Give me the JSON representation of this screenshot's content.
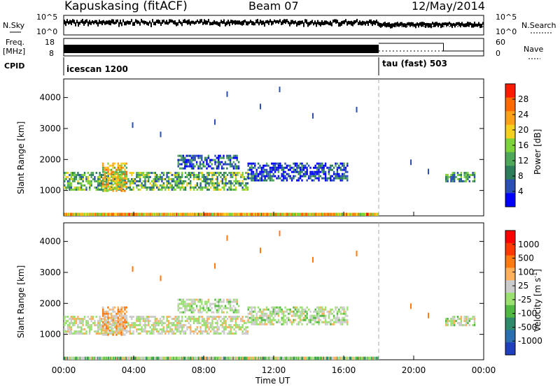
{
  "header": {
    "station": "Kapuskasing (fitACF)",
    "beam": "Beam 07",
    "date": "12/May/2014"
  },
  "panels": {
    "nsky_label": "N.Sky",
    "nsky_ticks": [
      "10^5",
      "10^0"
    ],
    "nsearch_label": "N.Search",
    "nsearch_ticks": [
      "10^5",
      "10^0"
    ],
    "freq_label": "Freq.",
    "freq_unit": "[MHz]",
    "freq_ticks": [
      "18",
      "8"
    ],
    "nave_label": "Nave",
    "nave_ticks": [
      "60",
      "0"
    ],
    "cpid_label": "CPID",
    "cpid_segments": [
      {
        "name": "icescan 1200",
        "start_h": 0,
        "end_h": 18
      },
      {
        "name": "tau (fast) 503",
        "start_h": 18,
        "end_h": 24
      }
    ]
  },
  "axes": {
    "ylabel": "Slant Range [km]",
    "xlabel": "Time UT",
    "x_ticks": [
      "00:00",
      "04:00",
      "08:00",
      "12:00",
      "16:00",
      "20:00",
      "00:00"
    ],
    "y_ticks": [
      "1000",
      "2000",
      "3000",
      "4000"
    ]
  },
  "colorbars": {
    "power": {
      "label": "Power [dB]",
      "ticks": [
        "28",
        "24",
        "20",
        "16",
        "12",
        "8",
        "4"
      ],
      "colors": [
        "#0000ff",
        "#2b4fb5",
        "#2e7d5a",
        "#4fa85a",
        "#7fd33a",
        "#f5d020",
        "#ff9f1a",
        "#ff6a00",
        "#ff1a00"
      ]
    },
    "velocity": {
      "label": "Velocity [m s",
      "label_sup": "-1",
      "label_end": "]",
      "ticks": [
        "1000",
        "500",
        "100",
        "25",
        "-25",
        "-100",
        "-500",
        "-1000"
      ],
      "colors": [
        "#1f3fbf",
        "#2b6fb0",
        "#2e8a6a",
        "#52b844",
        "#9be070",
        "#cccccc",
        "#ffb05a",
        "#ff7a10",
        "#ff3a00",
        "#ff0000"
      ]
    }
  },
  "chart_data": {
    "type": "heatmap",
    "x_unit": "hours UT",
    "y_unit": "km",
    "xlim": [
      0,
      24
    ],
    "ylim": [
      180,
      4600
    ],
    "power_range_db": [
      0,
      30
    ],
    "velocity_range": [
      -1000,
      1000
    ],
    "mode_change_h": 18,
    "echo_regions": [
      {
        "t0": 0.0,
        "t1": 10.5,
        "r0": 1000,
        "r1": 1600,
        "power": 12,
        "velocity": -50
      },
      {
        "t0": 2.2,
        "t1": 3.6,
        "r0": 1000,
        "r1": 1900,
        "power": 18,
        "velocity": -300
      },
      {
        "t0": 6.5,
        "t1": 10.0,
        "r0": 1700,
        "r1": 2150,
        "power": 6,
        "velocity": 20
      },
      {
        "t0": 10.5,
        "t1": 16.2,
        "r0": 1300,
        "r1": 1900,
        "power": 5,
        "velocity": 10
      },
      {
        "t0": 21.8,
        "t1": 23.5,
        "r0": 1300,
        "r1": 1600,
        "power": 10,
        "velocity": 0
      },
      {
        "t0": 0.0,
        "t1": 18.0,
        "r0": 180,
        "r1": 280,
        "power": 20,
        "velocity": 100
      }
    ],
    "sparse_echoes": [
      {
        "t": 3.9,
        "r": 3200
      },
      {
        "t": 5.5,
        "r": 2900
      },
      {
        "t": 8.6,
        "r": 3300
      },
      {
        "t": 9.3,
        "r": 4200
      },
      {
        "t": 11.2,
        "r": 3800
      },
      {
        "t": 12.3,
        "r": 4350
      },
      {
        "t": 14.2,
        "r": 3500
      },
      {
        "t": 16.7,
        "r": 3700
      },
      {
        "t": 19.8,
        "r": 2000
      },
      {
        "t": 20.8,
        "r": 1700
      }
    ]
  }
}
